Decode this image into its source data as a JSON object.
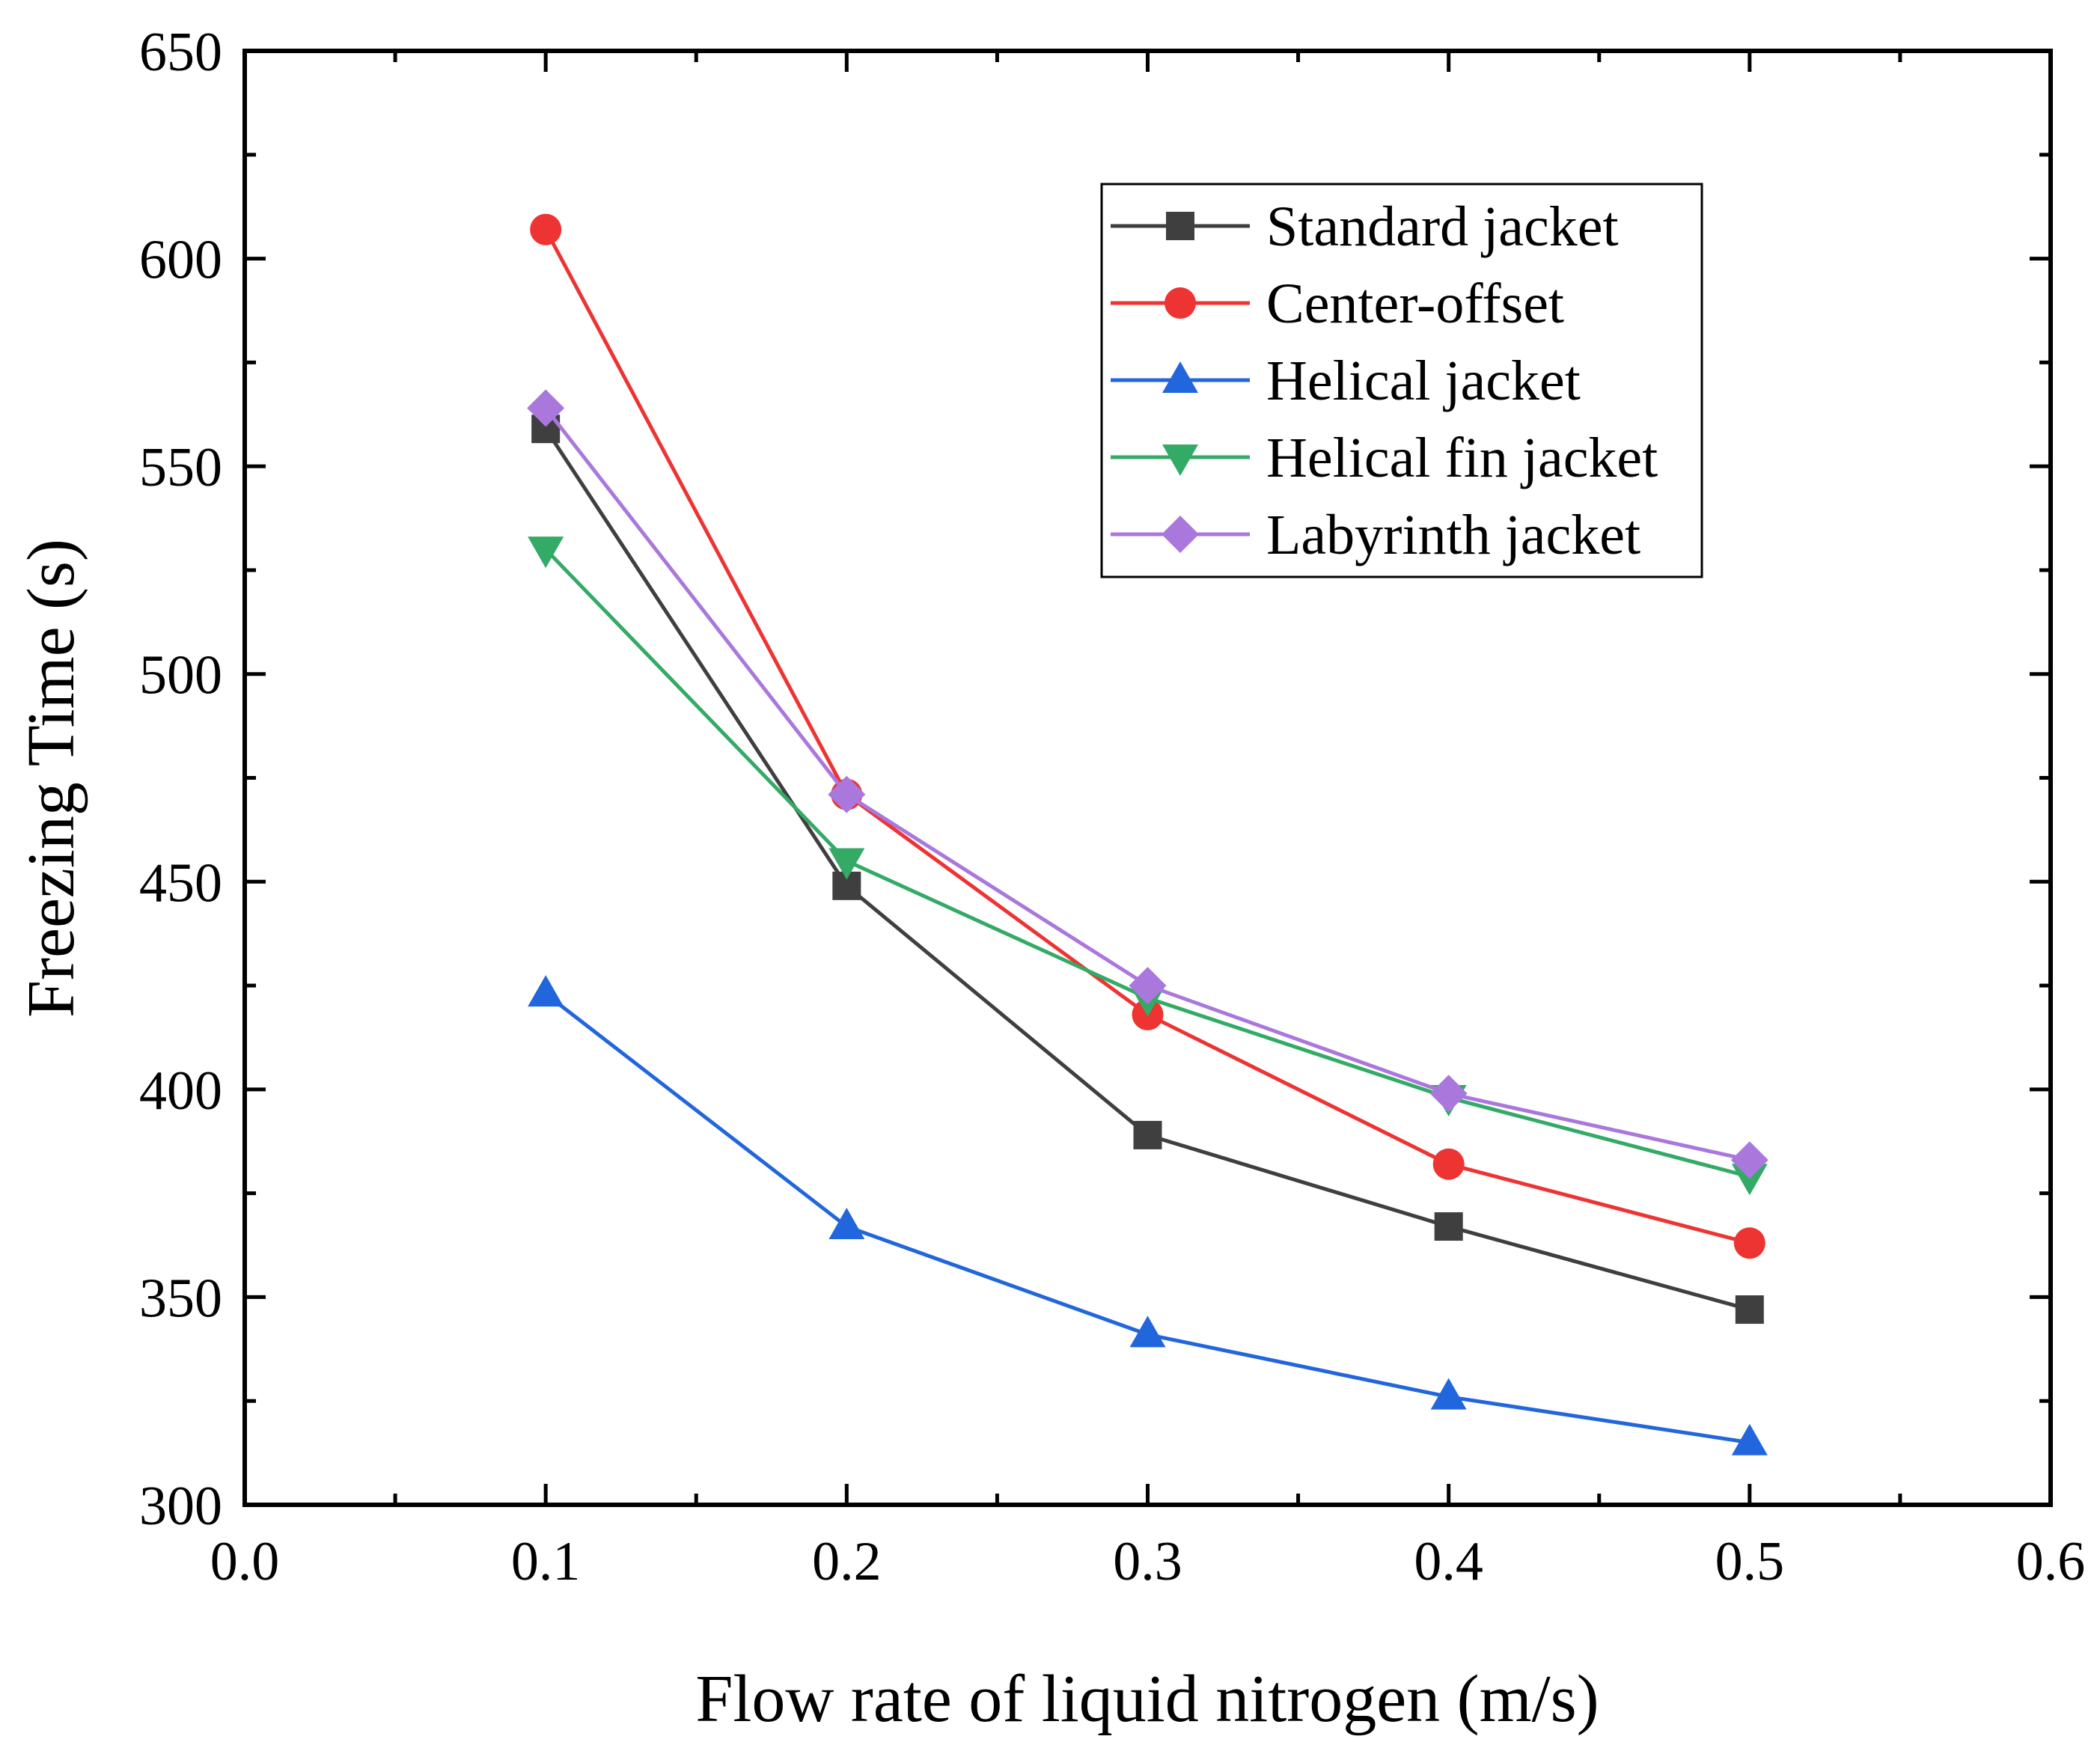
{
  "chart_data": {
    "type": "line",
    "title": "",
    "xlabel": "Flow rate of liquid nitrogen (m/s)",
    "ylabel": "Freezing Time (s)",
    "xlim": [
      0.0,
      0.6
    ],
    "ylim": [
      300,
      650
    ],
    "x_major_ticks": [
      0.0,
      0.1,
      0.2,
      0.3,
      0.4,
      0.5,
      0.6
    ],
    "x_tick_labels": [
      "0.0",
      "0.1",
      "0.2",
      "0.3",
      "0.4",
      "0.5",
      "0.6"
    ],
    "x_minor_ticks": [
      0.05,
      0.15,
      0.25,
      0.35,
      0.45,
      0.55
    ],
    "y_major_ticks": [
      300,
      350,
      400,
      450,
      500,
      550,
      600,
      650
    ],
    "y_tick_labels": [
      "300",
      "350",
      "400",
      "450",
      "500",
      "550",
      "600",
      "650"
    ],
    "y_minor_ticks": [
      325,
      375,
      425,
      475,
      525,
      575,
      625
    ],
    "grid": false,
    "legend_position": "top-right",
    "x": [
      0.1,
      0.2,
      0.3,
      0.4,
      0.5
    ],
    "series": [
      {
        "name": "Standard jacket",
        "marker": "square",
        "color": "#3f3f3f",
        "values": [
          559,
          449,
          389,
          367,
          347
        ]
      },
      {
        "name": "Center-offset",
        "marker": "circle",
        "color": "#ee3333",
        "values": [
          607,
          471,
          418,
          382,
          363
        ]
      },
      {
        "name": "Helical jacket",
        "marker": "triangle-up",
        "color": "#2266dd",
        "values": [
          423,
          367,
          341,
          326,
          315
        ]
      },
      {
        "name": "Helical fin jacket",
        "marker": "triangle-down",
        "color": "#33aa66",
        "values": [
          530,
          455,
          422,
          398,
          379
        ]
      },
      {
        "name": "Labyrinth jacket",
        "marker": "diamond",
        "color": "#aa77dd",
        "values": [
          564,
          471,
          425,
          399,
          383
        ]
      }
    ]
  }
}
